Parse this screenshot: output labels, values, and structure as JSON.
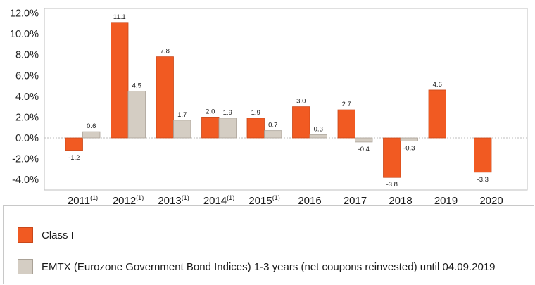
{
  "colors": {
    "class_i": "#f15a22",
    "class_i_stroke": "#c9481a",
    "benchmark": "#d4cdc3",
    "benchmark_stroke": "#a9a196",
    "grid": "#dcdcdc",
    "axis": "#999999"
  },
  "chart_data": {
    "type": "bar",
    "categories": [
      {
        "year": "2011",
        "note": "(1)"
      },
      {
        "year": "2012",
        "note": "(1)"
      },
      {
        "year": "2013",
        "note": "(1)"
      },
      {
        "year": "2014",
        "note": "(1)"
      },
      {
        "year": "2015",
        "note": "(1)"
      },
      {
        "year": "2016",
        "note": ""
      },
      {
        "year": "2017",
        "note": ""
      },
      {
        "year": "2018",
        "note": ""
      },
      {
        "year": "2019",
        "note": ""
      },
      {
        "year": "2020",
        "note": ""
      }
    ],
    "series": [
      {
        "name": "Class I",
        "values": [
          -1.2,
          11.1,
          7.8,
          2.0,
          1.9,
          3.0,
          2.7,
          -3.8,
          4.6,
          -3.3
        ],
        "labels": [
          "-1.2",
          "11.1",
          "7.8",
          "2.0",
          "1.9",
          "3.0",
          "2.7",
          "-3.8",
          "4.6",
          "-3.3"
        ]
      },
      {
        "name": "EMTX (Eurozone Government Bond Indices) 1-3 years (net coupons reinvested) until 04.09.2019",
        "values": [
          0.6,
          4.5,
          1.7,
          1.9,
          0.7,
          0.3,
          -0.4,
          -0.3,
          null,
          null
        ],
        "labels": [
          "0.6",
          "4.5",
          "1.7",
          "1.9",
          "0.7",
          "0.3",
          "-0.4",
          "-0.3",
          null,
          null
        ]
      }
    ],
    "y_ticks": [
      12,
      10,
      8,
      6,
      4,
      2,
      0,
      -2,
      -4
    ],
    "y_tick_labels": [
      "12.0%",
      "10.0%",
      "8.0%",
      "6.0%",
      "4.0%",
      "2.0%",
      "0.0%",
      "-2.0%",
      "-4.0%"
    ],
    "ylim": [
      -5,
      12
    ],
    "grid": "zero line only",
    "legend_position": "bottom"
  }
}
